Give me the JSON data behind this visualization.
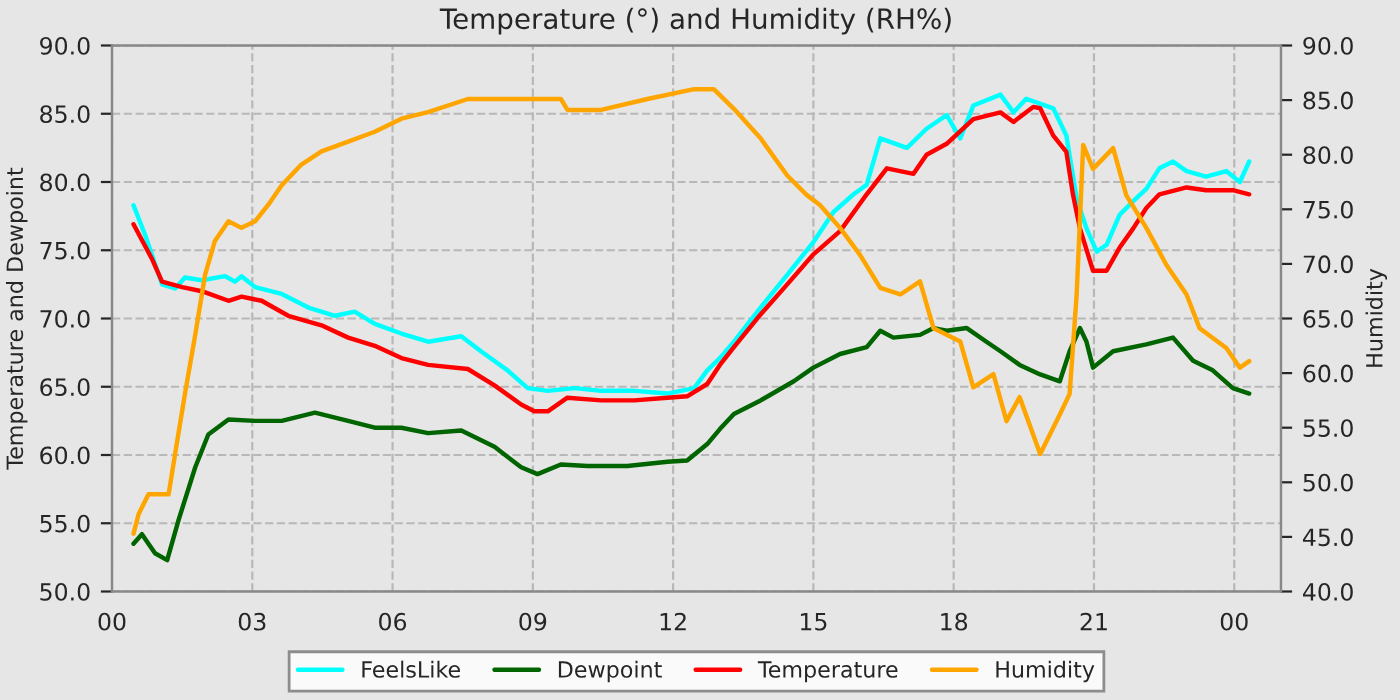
{
  "chart_data": {
    "type": "line",
    "title": "Temperature (°) and Humidity (RH%)",
    "ylabel": "Temperature and Dewpoint",
    "y2label": "Humidity",
    "xlim": [
      0,
      25
    ],
    "xticks": [
      {
        "value": 0,
        "label": "00"
      },
      {
        "value": 3,
        "label": "03"
      },
      {
        "value": 6,
        "label": "06"
      },
      {
        "value": 9,
        "label": "09"
      },
      {
        "value": 12,
        "label": "12"
      },
      {
        "value": 15,
        "label": "15"
      },
      {
        "value": 18,
        "label": "18"
      },
      {
        "value": 21,
        "label": "21"
      },
      {
        "value": 24,
        "label": "00"
      }
    ],
    "ylim": [
      50,
      90
    ],
    "yticks": [
      {
        "value": 50,
        "label": "50.0"
      },
      {
        "value": 55,
        "label": "55.0"
      },
      {
        "value": 60,
        "label": "60.0"
      },
      {
        "value": 65,
        "label": "65.0"
      },
      {
        "value": 70,
        "label": "70.0"
      },
      {
        "value": 75,
        "label": "75.0"
      },
      {
        "value": 80,
        "label": "80.0"
      },
      {
        "value": 85,
        "label": "85.0"
      },
      {
        "value": 90,
        "label": "90.0"
      }
    ],
    "y2lim": [
      40,
      90
    ],
    "y2ticks": [
      {
        "value": 40,
        "label": "40.0"
      },
      {
        "value": 45,
        "label": "45.0"
      },
      {
        "value": 50,
        "label": "50.0"
      },
      {
        "value": 55,
        "label": "55.0"
      },
      {
        "value": 60,
        "label": "60.0"
      },
      {
        "value": 65,
        "label": "65.0"
      },
      {
        "value": 70,
        "label": "70.0"
      },
      {
        "value": 75,
        "label": "75.0"
      },
      {
        "value": 80,
        "label": "80.0"
      },
      {
        "value": 85,
        "label": "85.0"
      },
      {
        "value": 90,
        "label": "90.0"
      }
    ],
    "grid": true,
    "legend": "bottom",
    "line_style": "solid",
    "series": [
      {
        "name": "FeelsLike",
        "color": "#00ffff",
        "x": [
          0.46,
          0.71,
          1.07,
          1.35,
          1.56,
          1.92,
          2.42,
          2.63,
          2.77,
          3.06,
          3.63,
          4.2,
          4.77,
          5.19,
          5.62,
          6.19,
          6.76,
          7.47,
          7.89,
          8.46,
          8.89,
          9.32,
          9.89,
          10.46,
          11.17,
          11.88,
          12.45,
          12.73,
          13.0,
          13.3,
          13.87,
          14.44,
          15.0,
          15.43,
          15.86,
          16.14,
          16.43,
          17.0,
          17.42,
          17.85,
          18.14,
          18.42,
          19.0,
          19.28,
          19.55,
          20.13,
          20.41,
          20.63,
          20.84,
          21.06,
          21.27,
          21.55,
          21.84,
          22.12,
          22.4,
          22.69,
          22.98,
          23.4,
          23.83,
          24.12,
          24.32
        ],
        "values": [
          78.3,
          76.1,
          72.5,
          72.2,
          73.0,
          72.8,
          73.1,
          72.7,
          73.1,
          72.3,
          71.8,
          70.8,
          70.2,
          70.5,
          69.6,
          68.9,
          68.3,
          68.7,
          67.6,
          66.2,
          64.9,
          64.7,
          64.9,
          64.7,
          64.7,
          64.5,
          64.9,
          66.2,
          67.1,
          68.3,
          70.8,
          73.2,
          75.6,
          77.8,
          79.1,
          79.8,
          83.2,
          82.5,
          83.9,
          84.9,
          83.2,
          85.6,
          86.4,
          85.1,
          86.1,
          85.4,
          83.4,
          78.8,
          76.6,
          74.9,
          75.4,
          77.6,
          78.6,
          79.5,
          81.0,
          81.5,
          80.8,
          80.4,
          80.8,
          80.0,
          81.5
        ]
      },
      {
        "name": "Dewpoint",
        "color": "#006400",
        "x": [
          0.46,
          0.64,
          0.92,
          1.18,
          1.42,
          1.78,
          2.06,
          2.49,
          3.06,
          3.63,
          4.34,
          5.05,
          5.62,
          6.19,
          6.76,
          7.47,
          8.18,
          8.75,
          9.1,
          9.6,
          10.17,
          11.02,
          11.88,
          12.3,
          12.73,
          13.0,
          13.3,
          13.87,
          14.58,
          15.0,
          15.57,
          16.14,
          16.43,
          16.71,
          17.28,
          17.57,
          17.85,
          18.28,
          18.7,
          19.0,
          19.41,
          19.85,
          20.27,
          20.48,
          20.7,
          20.84,
          20.98,
          21.41,
          22.12,
          22.69,
          23.12,
          23.54,
          23.97,
          24.32
        ],
        "values": [
          53.5,
          54.2,
          52.8,
          52.3,
          55.2,
          59.1,
          61.5,
          62.6,
          62.5,
          62.5,
          63.1,
          62.5,
          62.0,
          62.0,
          61.6,
          61.8,
          60.6,
          59.1,
          58.6,
          59.3,
          59.2,
          59.2,
          59.5,
          59.6,
          60.8,
          61.9,
          63.0,
          64.0,
          65.4,
          66.4,
          67.4,
          67.9,
          69.1,
          68.6,
          68.8,
          69.3,
          69.1,
          69.3,
          68.3,
          67.6,
          66.6,
          65.9,
          65.4,
          67.6,
          69.3,
          68.3,
          66.4,
          67.6,
          68.1,
          68.6,
          66.9,
          66.2,
          64.9,
          64.5
        ]
      },
      {
        "name": "Temperature",
        "color": "#ff0000",
        "x": [
          0.46,
          0.85,
          1.07,
          1.5,
          1.92,
          2.49,
          2.77,
          3.2,
          3.77,
          4.48,
          5.05,
          5.62,
          6.19,
          6.76,
          7.61,
          8.18,
          8.75,
          9.03,
          9.32,
          9.74,
          10.46,
          11.17,
          11.88,
          12.3,
          12.73,
          13.0,
          13.3,
          13.87,
          14.44,
          15.0,
          15.57,
          16.14,
          16.57,
          17.14,
          17.42,
          17.85,
          18.42,
          19.0,
          19.28,
          19.7,
          19.85,
          20.13,
          20.41,
          20.55,
          20.7,
          20.98,
          21.27,
          21.55,
          21.84,
          22.12,
          22.4,
          22.98,
          23.4,
          23.97,
          24.32
        ],
        "values": [
          76.9,
          74.4,
          72.7,
          72.3,
          72.0,
          71.3,
          71.6,
          71.3,
          70.2,
          69.5,
          68.6,
          68.0,
          67.1,
          66.6,
          66.3,
          65.1,
          63.7,
          63.2,
          63.2,
          64.2,
          64.0,
          64.0,
          64.2,
          64.3,
          65.2,
          66.6,
          67.9,
          70.3,
          72.5,
          74.7,
          76.4,
          79.1,
          81.0,
          80.6,
          82.0,
          82.8,
          84.6,
          85.1,
          84.4,
          85.5,
          85.4,
          83.4,
          82.2,
          79.1,
          76.6,
          73.5,
          73.5,
          75.2,
          76.6,
          78.1,
          79.1,
          79.6,
          79.4,
          79.4,
          79.1
        ]
      },
      {
        "name": "Humidity",
        "color": "#ffa500",
        "axis": "y2",
        "x": [
          0.46,
          0.57,
          0.78,
          1.21,
          1.35,
          1.56,
          1.78,
          1.99,
          2.2,
          2.49,
          2.77,
          3.06,
          3.34,
          3.63,
          4.05,
          4.48,
          5.05,
          5.62,
          6.19,
          6.76,
          7.61,
          8.46,
          9.6,
          9.74,
          10.46,
          11.45,
          12.45,
          12.87,
          13.3,
          13.87,
          14.44,
          14.86,
          15.14,
          15.57,
          16.0,
          16.43,
          16.86,
          17.28,
          17.57,
          18.14,
          18.42,
          18.85,
          19.13,
          19.41,
          19.85,
          20.27,
          20.48,
          20.63,
          20.77,
          20.98,
          21.41,
          21.69,
          22.12,
          22.55,
          22.98,
          23.26,
          23.83,
          24.12,
          24.32
        ],
        "values": [
          45.3,
          47.1,
          48.9,
          48.9,
          52.6,
          58.1,
          63.5,
          69.0,
          72.1,
          73.9,
          73.3,
          73.9,
          75.4,
          77.2,
          79.1,
          80.3,
          81.2,
          82.1,
          83.3,
          83.9,
          85.1,
          85.1,
          85.1,
          84.1,
          84.1,
          85.1,
          86.0,
          86.0,
          84.2,
          81.5,
          78.1,
          76.3,
          75.4,
          73.3,
          70.8,
          67.8,
          67.2,
          68.4,
          64.1,
          62.9,
          58.7,
          59.9,
          55.6,
          57.8,
          52.6,
          56.2,
          58.1,
          67.2,
          80.9,
          78.7,
          80.6,
          76.3,
          73.3,
          69.9,
          67.2,
          64.1,
          62.3,
          60.5,
          61.1
        ]
      }
    ]
  }
}
